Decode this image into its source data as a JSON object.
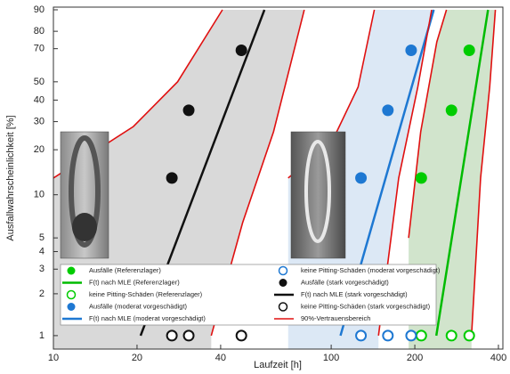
{
  "chart_data": {
    "type": "weibull",
    "xlabel": "Laufzeit [h]",
    "ylabel": "Ausfallwahrscheinlichkeit [%]",
    "xscale": "log",
    "yscale": "weibull",
    "xlim": [
      10,
      415
    ],
    "xticks": [
      10,
      20,
      40,
      100,
      200,
      400
    ],
    "ylim": [
      0.8,
      91
    ],
    "yticks": [
      1,
      2,
      3,
      4,
      5,
      10,
      20,
      30,
      40,
      50,
      70,
      80,
      90
    ],
    "series": [
      {
        "name": "Ausfälle (Referenzlager)",
        "color": "#00cc00",
        "marker": "filled",
        "x": [
          211,
          271,
          314
        ],
        "values": [
          13,
          35,
          69
        ]
      },
      {
        "name": "F(t) nach MLE (Referenzlager)",
        "color": "#00bb00",
        "marker": "line",
        "x": [
          239,
          367
        ],
        "values": [
          1,
          90
        ]
      },
      {
        "name": "keine Pitting-Schäden (Referenzlager)",
        "color": "#00cc00",
        "marker": "open",
        "x": [
          211,
          271,
          314
        ],
        "values": [
          1,
          1,
          1
        ]
      },
      {
        "name": "Ausfälle (moderat vorgeschädigt)",
        "color": "#1e78d2",
        "marker": "filled",
        "x": [
          128,
          160,
          194
        ],
        "values": [
          13,
          35,
          69
        ]
      },
      {
        "name": "F(t) nach MLE (moderat vorgeschädigt)",
        "color": "#1e78d2",
        "marker": "line",
        "x": [
          108,
          234
        ],
        "values": [
          1,
          90
        ]
      },
      {
        "name": "keine Pitting-Schäden (moderat vorgeschädigt)",
        "color": "#1e78d2",
        "marker": "open",
        "x": [
          128,
          160,
          194
        ],
        "values": [
          1,
          1,
          1
        ]
      },
      {
        "name": "Ausfälle (stark vorgeschädigt)",
        "color": "#111111",
        "marker": "filled",
        "x": [
          26.7,
          30.7,
          47.5
        ],
        "values": [
          13,
          35,
          69
        ]
      },
      {
        "name": "F(t) nach MLE (stark vorgeschädigt)",
        "color": "#111111",
        "marker": "line",
        "x": [
          20.6,
          57.5
        ],
        "values": [
          1,
          90
        ]
      },
      {
        "name": "keine Pitting-Schäden (stark vorgeschädigt)",
        "color": "#111111",
        "marker": "open",
        "x": [
          26.7,
          30.7,
          47.5
        ],
        "values": [
          1,
          1,
          1
        ]
      },
      {
        "name": "90%-Vertrauensbereich",
        "color": "#e01010",
        "marker": "bounds",
        "bands": [
          {
            "fill": "#d2d2d2",
            "curves": [
              {
                "x": [
                  10,
                  19.4,
                  28,
                  40.6
                ],
                "values": [
                  13,
                  28,
                  50,
                  90
                ]
              },
              {
                "x": [
                  37,
                  48,
                  62,
                  80
                ],
                "values": [
                  1,
                  6.4,
                  26,
                  90
                ]
              }
            ]
          },
          {
            "fill": "#d6e4f3",
            "curves": [
              {
                "x": [
                  70,
                  100,
                  125,
                  143
                ],
                "values": [
                  13,
                  22,
                  47,
                  90
                ]
              },
              {
                "x": [
                  148,
                  175,
                  205,
                  230
                ],
                "values": [
                  1,
                  13,
                  47,
                  90
                ]
              }
            ]
          },
          {
            "fill": "#c9dfc3",
            "curves": [
              {
                "x": [
                  190,
                  210,
                  240,
                  260
                ],
                "values": [
                  5,
                  26,
                  74,
                  90
                ]
              },
              {
                "x": [
                  320,
                  345,
                  372,
                  390
                ],
                "values": [
                  1,
                  13,
                  47,
                  90
                ]
              }
            ]
          }
        ]
      }
    ]
  }
}
